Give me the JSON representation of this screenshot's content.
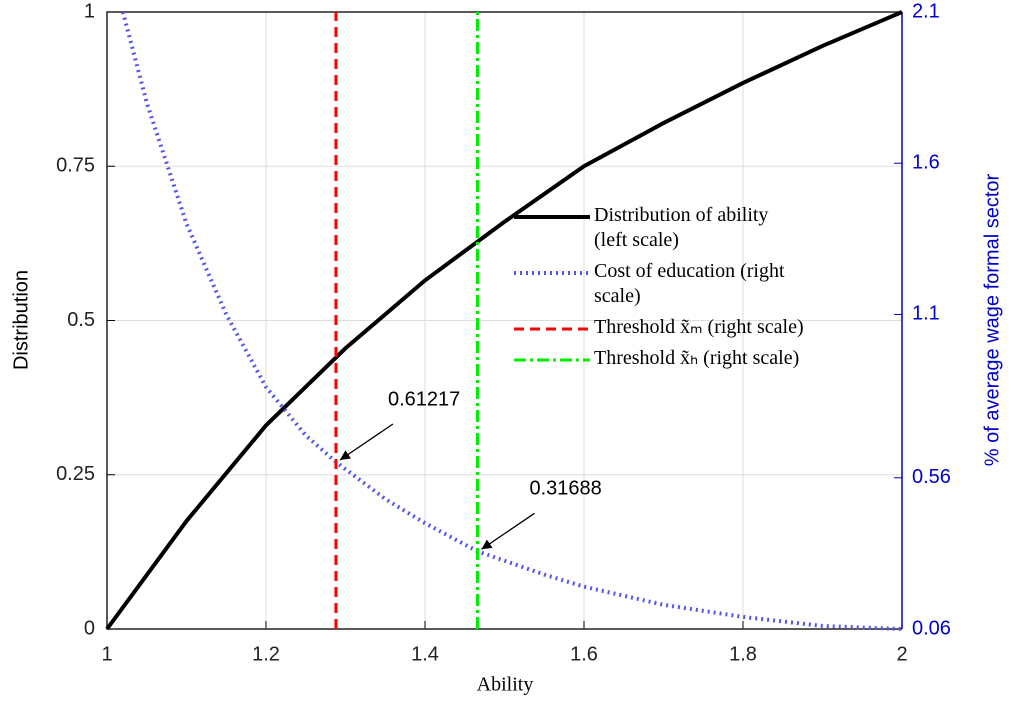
{
  "chart_data": {
    "type": "line",
    "xlabel": "Ability",
    "ylabel": "Distribution",
    "y2label": "% of average wage formal sector",
    "xlim": [
      1,
      2
    ],
    "xticks": [
      1,
      1.2,
      1.4,
      1.6,
      1.8,
      2
    ],
    "ylim": [
      0,
      1
    ],
    "yticks": [
      0,
      0.25,
      0.5,
      0.75,
      1
    ],
    "y2lim": [
      0.06,
      2.1
    ],
    "y2ticks": [
      0.06,
      0.56,
      1.1,
      1.6,
      2.1
    ],
    "grid": true,
    "legend": "right",
    "series": [
      {
        "name": "Distribution of ability (left scale)",
        "color": "#000000",
        "style": "solid",
        "x": [
          1.0,
          1.1,
          1.2,
          1.3,
          1.4,
          1.5,
          1.6,
          1.7,
          1.8,
          1.9,
          2.0
        ],
        "values": [
          0,
          0.175,
          0.33,
          0.455,
          0.565,
          0.66,
          0.75,
          0.82,
          0.885,
          0.945,
          1
        ]
      },
      {
        "name": "Cost of education (right scale)",
        "color": "#5555ee",
        "style": "dotted",
        "axis": "y2",
        "x": [
          1.02,
          1.05,
          1.1,
          1.15,
          1.2,
          1.25,
          1.288,
          1.35,
          1.4,
          1.466,
          1.55,
          1.6,
          1.7,
          1.8,
          1.9,
          2.0
        ],
        "values": [
          2.1,
          1.8,
          1.4,
          1.1,
          0.86,
          0.7,
          0.61217,
          0.49,
          0.41,
          0.31688,
          0.24,
          0.2,
          0.14,
          0.1,
          0.07,
          0.06
        ]
      },
      {
        "name": "Threshold x̃ₘ (right scale)",
        "color": "#ff0000",
        "style": "dashed",
        "axis": "y2",
        "x": [
          1.288,
          1.288
        ],
        "values": [
          0.06,
          2.1
        ]
      },
      {
        "name": "Threshold x̃ₕ (right scale)",
        "color": "#00ee00",
        "style": "dashdot",
        "axis": "y2",
        "x": [
          1.466,
          1.466
        ],
        "values": [
          0.06,
          2.1
        ]
      }
    ],
    "annotations": [
      {
        "text": "0.61217",
        "x": 1.288,
        "y": 0.61217
      },
      {
        "text": "0.31688",
        "x": 1.466,
        "y": 0.31688
      }
    ]
  }
}
